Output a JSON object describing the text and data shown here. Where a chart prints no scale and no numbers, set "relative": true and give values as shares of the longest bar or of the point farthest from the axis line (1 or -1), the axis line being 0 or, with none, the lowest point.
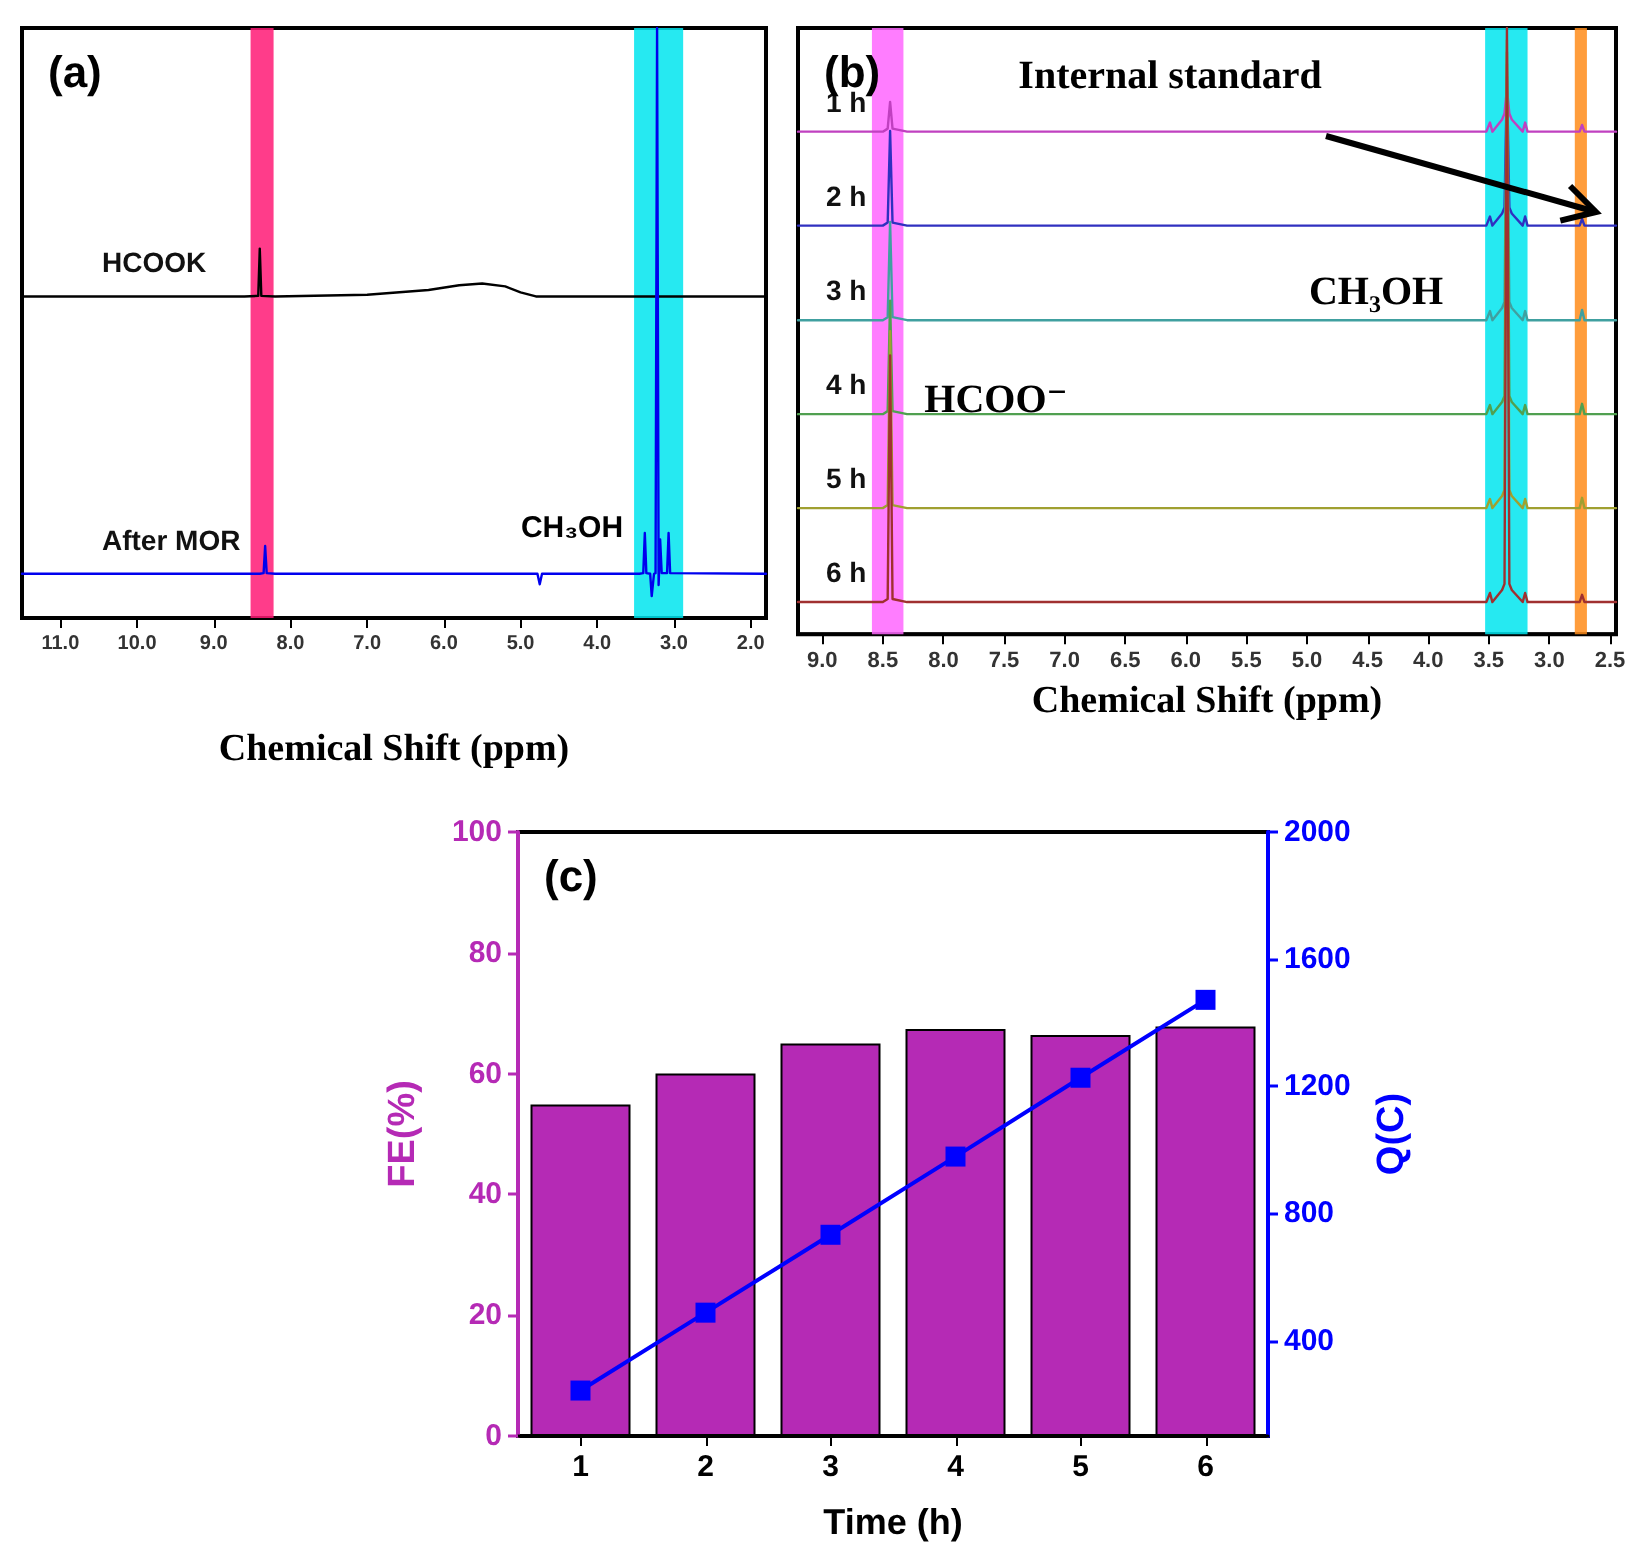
{
  "chart_data": [
    {
      "type": "line",
      "title": "(a)",
      "xlabel": "Chemical Shift (ppm)",
      "relative": true,
      "marker": "none",
      "xlim": [
        11.5,
        1.8
      ],
      "xticks": [
        {
          "value": 11,
          "label": "11.0"
        },
        {
          "value": 10,
          "label": "10.0"
        },
        {
          "value": 9,
          "label": "9.0"
        },
        {
          "value": 8,
          "label": "8.0"
        },
        {
          "value": 7,
          "label": "7.0"
        },
        {
          "value": 6,
          "label": "6.0"
        },
        {
          "value": 5,
          "label": "5.0"
        },
        {
          "value": 4,
          "label": "4.0"
        },
        {
          "value": 3,
          "label": "3.0"
        },
        {
          "value": 2,
          "label": "2.0"
        }
      ],
      "series": [
        {
          "name": "HCOOK",
          "color": "#000000",
          "x": [
            11.5,
            8.6,
            8.42,
            8.4,
            8.38,
            8.2,
            7.0,
            6.2,
            5.8,
            5.5,
            5.2,
            5.0,
            4.8,
            4.0,
            1.8
          ],
          "values": [
            0.545,
            0.545,
            0.546,
            0.626,
            0.546,
            0.545,
            0.548,
            0.556,
            0.564,
            0.567,
            0.562,
            0.552,
            0.545,
            0.545,
            0.545
          ]
        },
        {
          "name": "After MOR",
          "color": "#0000ee",
          "x": [
            11.5,
            8.4,
            8.35,
            8.33,
            8.31,
            8.2,
            4.78,
            4.75,
            4.72,
            3.45,
            3.4,
            3.38,
            3.36,
            3.31,
            3.29,
            3.26,
            3.24,
            3.22,
            3.2,
            3.18,
            3.16,
            3.09,
            3.07,
            3.05,
            1.8
          ],
          "values": [
            0.075,
            0.075,
            0.076,
            0.122,
            0.076,
            0.075,
            0.075,
            0.057,
            0.075,
            0.075,
            0.076,
            0.144,
            0.076,
            0.075,
            0.037,
            0.075,
            0.076,
            1.0,
            0.056,
            0.133,
            0.076,
            0.076,
            0.144,
            0.076,
            0.075
          ]
        }
      ],
      "bands": [
        {
          "axis": "x",
          "from": 8.52,
          "to": 8.22,
          "color": "#ff1a75"
        },
        {
          "axis": "x",
          "from": 3.52,
          "to": 2.88,
          "color": "#00e5ee"
        }
      ],
      "annotations": [
        "CH₃OH"
      ]
    },
    {
      "type": "line",
      "title": "(b)",
      "xlabel": "Chemical Shift (ppm)",
      "relative": true,
      "marker": "none",
      "xlim": [
        9.2,
        2.45
      ],
      "xticks": [
        {
          "value": 9,
          "label": "9.0"
        },
        8.5,
        {
          "value": 8,
          "label": "8.0"
        },
        7.5,
        {
          "value": 7,
          "label": "7.0"
        },
        6.5,
        {
          "value": 6,
          "label": "6.0"
        },
        5.5,
        {
          "value": 5,
          "label": "5.0"
        },
        4.5,
        {
          "value": 4,
          "label": "4.0"
        },
        3.5,
        {
          "value": 3,
          "label": "3.0"
        },
        2.5
      ],
      "x": [
        9.2,
        8.5,
        8.46,
        8.44,
        8.42,
        8.3,
        3.52,
        3.49,
        3.47,
        3.39,
        3.37,
        3.35,
        3.33,
        3.31,
        3.22,
        3.2,
        3.18,
        2.75,
        2.73,
        2.71,
        2.45
      ],
      "series": [
        {
          "name": "1 h",
          "color": "#c040c0",
          "values": [
            0.829,
            0.829,
            0.834,
            0.878,
            0.834,
            0.829,
            0.829,
            0.844,
            0.829,
            0.849,
            0.859,
            0.9,
            0.859,
            0.849,
            0.829,
            0.844,
            0.829,
            0.829,
            0.84,
            0.829,
            0.829
          ]
        },
        {
          "name": "2 h",
          "color": "#3030c0",
          "values": [
            0.674,
            0.674,
            0.679,
            0.83,
            0.679,
            0.674,
            0.674,
            0.689,
            0.674,
            0.694,
            0.704,
            0.92,
            0.704,
            0.694,
            0.674,
            0.689,
            0.674,
            0.674,
            0.685,
            0.674,
            0.674
          ]
        },
        {
          "name": "3 h",
          "color": "#40a0a0",
          "values": [
            0.518,
            0.518,
            0.523,
            0.68,
            0.523,
            0.518,
            0.518,
            0.533,
            0.518,
            0.538,
            0.548,
            0.94,
            0.548,
            0.538,
            0.518,
            0.533,
            0.518,
            0.518,
            0.535,
            0.518,
            0.518
          ]
        },
        {
          "name": "4 h",
          "color": "#50a050",
          "values": [
            0.363,
            0.363,
            0.368,
            0.55,
            0.368,
            0.363,
            0.363,
            0.378,
            0.363,
            0.383,
            0.393,
            0.96,
            0.393,
            0.383,
            0.363,
            0.378,
            0.363,
            0.363,
            0.38,
            0.363,
            0.363
          ]
        },
        {
          "name": "5 h",
          "color": "#a0a030",
          "values": [
            0.208,
            0.208,
            0.213,
            0.5,
            0.213,
            0.208,
            0.208,
            0.223,
            0.208,
            0.228,
            0.238,
            0.98,
            0.238,
            0.228,
            0.208,
            0.223,
            0.208,
            0.208,
            0.225,
            0.208,
            0.208
          ]
        },
        {
          "name": "6 h",
          "color": "#a03030",
          "values": [
            0.053,
            0.053,
            0.058,
            0.46,
            0.058,
            0.053,
            0.053,
            0.068,
            0.053,
            0.073,
            0.083,
            1.0,
            0.083,
            0.073,
            0.053,
            0.068,
            0.053,
            0.053,
            0.065,
            0.053,
            0.053
          ]
        }
      ],
      "bands": [
        {
          "axis": "x",
          "from": 8.59,
          "to": 8.33,
          "color": "#ff66ff"
        },
        {
          "axis": "x",
          "from": 3.53,
          "to": 3.18,
          "color": "#00e5ee"
        },
        {
          "axis": "x",
          "from": 2.79,
          "to": 2.69,
          "color": "#ff8c1a"
        }
      ],
      "annotations": [
        "Internal standard",
        "CH₃OH",
        "HCOO⁻"
      ]
    },
    {
      "type": "bar",
      "title": "(c)",
      "xlabel": "Time (h)",
      "ylabel": "FE(%)",
      "y2label": "Q(C)",
      "categories": [
        "1",
        "2",
        "3",
        "4",
        "5",
        "6"
      ],
      "ylim": [
        0,
        100
      ],
      "yticks": [
        0,
        20,
        40,
        60,
        80,
        100
      ],
      "y2lim": [
        100,
        2000
      ],
      "y2ticks": [
        400,
        800,
        1200,
        1600,
        2000
      ],
      "series": [
        {
          "color": "#b52ab5",
          "values": [
            54.9,
            60.0,
            65.0,
            67.4,
            66.4,
            67.8
          ]
        },
        {
          "type": "line",
          "axis": "y2",
          "color": "#0000ff",
          "marker": "square",
          "values": [
            243,
            488,
            733,
            979,
            1227,
            1472
          ]
        }
      ]
    }
  ]
}
